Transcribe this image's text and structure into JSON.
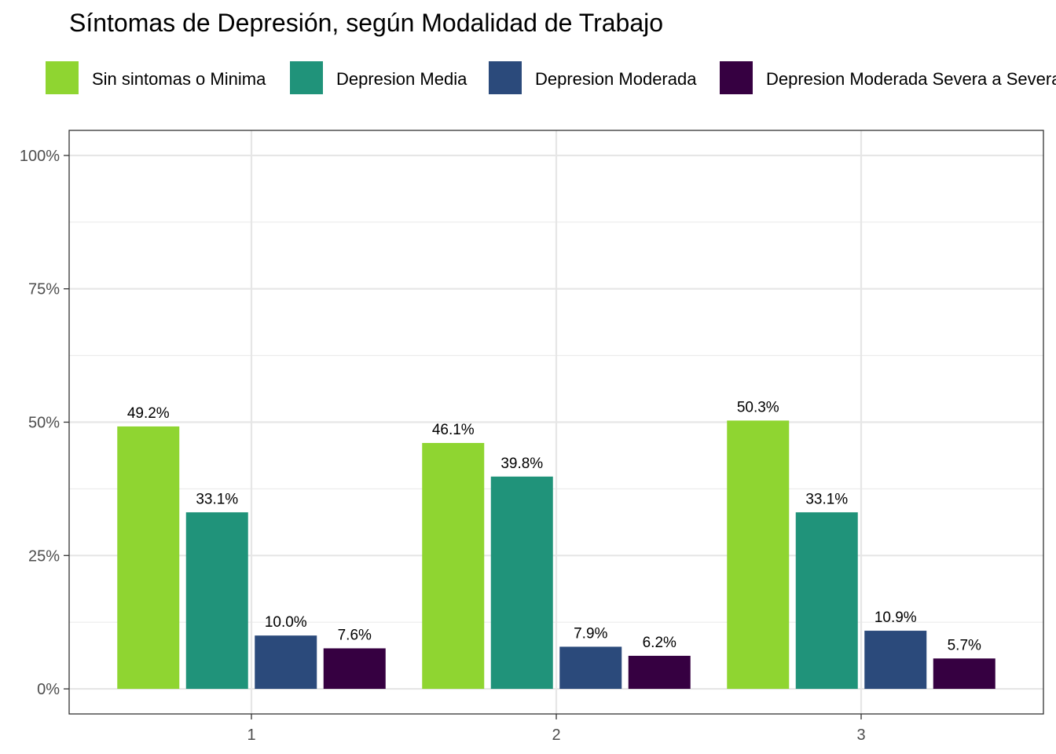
{
  "chart_data": {
    "type": "bar",
    "title": "Síntomas de Depresión, según Modalidad de Trabajo",
    "xlabel": "",
    "ylabel": "",
    "categories": [
      "1",
      "2",
      "3"
    ],
    "series": [
      {
        "name": "Sin sintomas o Minima",
        "color": "#8fd531",
        "values": [
          49.2,
          46.1,
          50.3
        ],
        "labels": [
          "49.2%",
          "46.1%",
          "50.3%"
        ]
      },
      {
        "name": "Depresion Media",
        "color": "#20937a",
        "values": [
          33.1,
          39.8,
          33.1
        ],
        "labels": [
          "33.1%",
          "39.8%",
          "33.1%"
        ]
      },
      {
        "name": "Depresion Moderada",
        "color": "#2b4a7b",
        "values": [
          10.0,
          7.9,
          10.9
        ],
        "labels": [
          "10.0%",
          "7.9%",
          "10.9%"
        ]
      },
      {
        "name": "Depresion Moderada Severa a Severa",
        "color": "#360041",
        "values": [
          7.6,
          6.2,
          5.7
        ],
        "labels": [
          "7.6%",
          "6.2%",
          "5.7%"
        ]
      }
    ],
    "yticks": [
      0,
      25,
      50,
      75,
      100
    ],
    "ytick_labels": [
      "0%",
      "25%",
      "50%",
      "75%",
      "100%"
    ],
    "ylim": [
      -4.7,
      104.7
    ],
    "grid": true,
    "legend_position": "top"
  }
}
